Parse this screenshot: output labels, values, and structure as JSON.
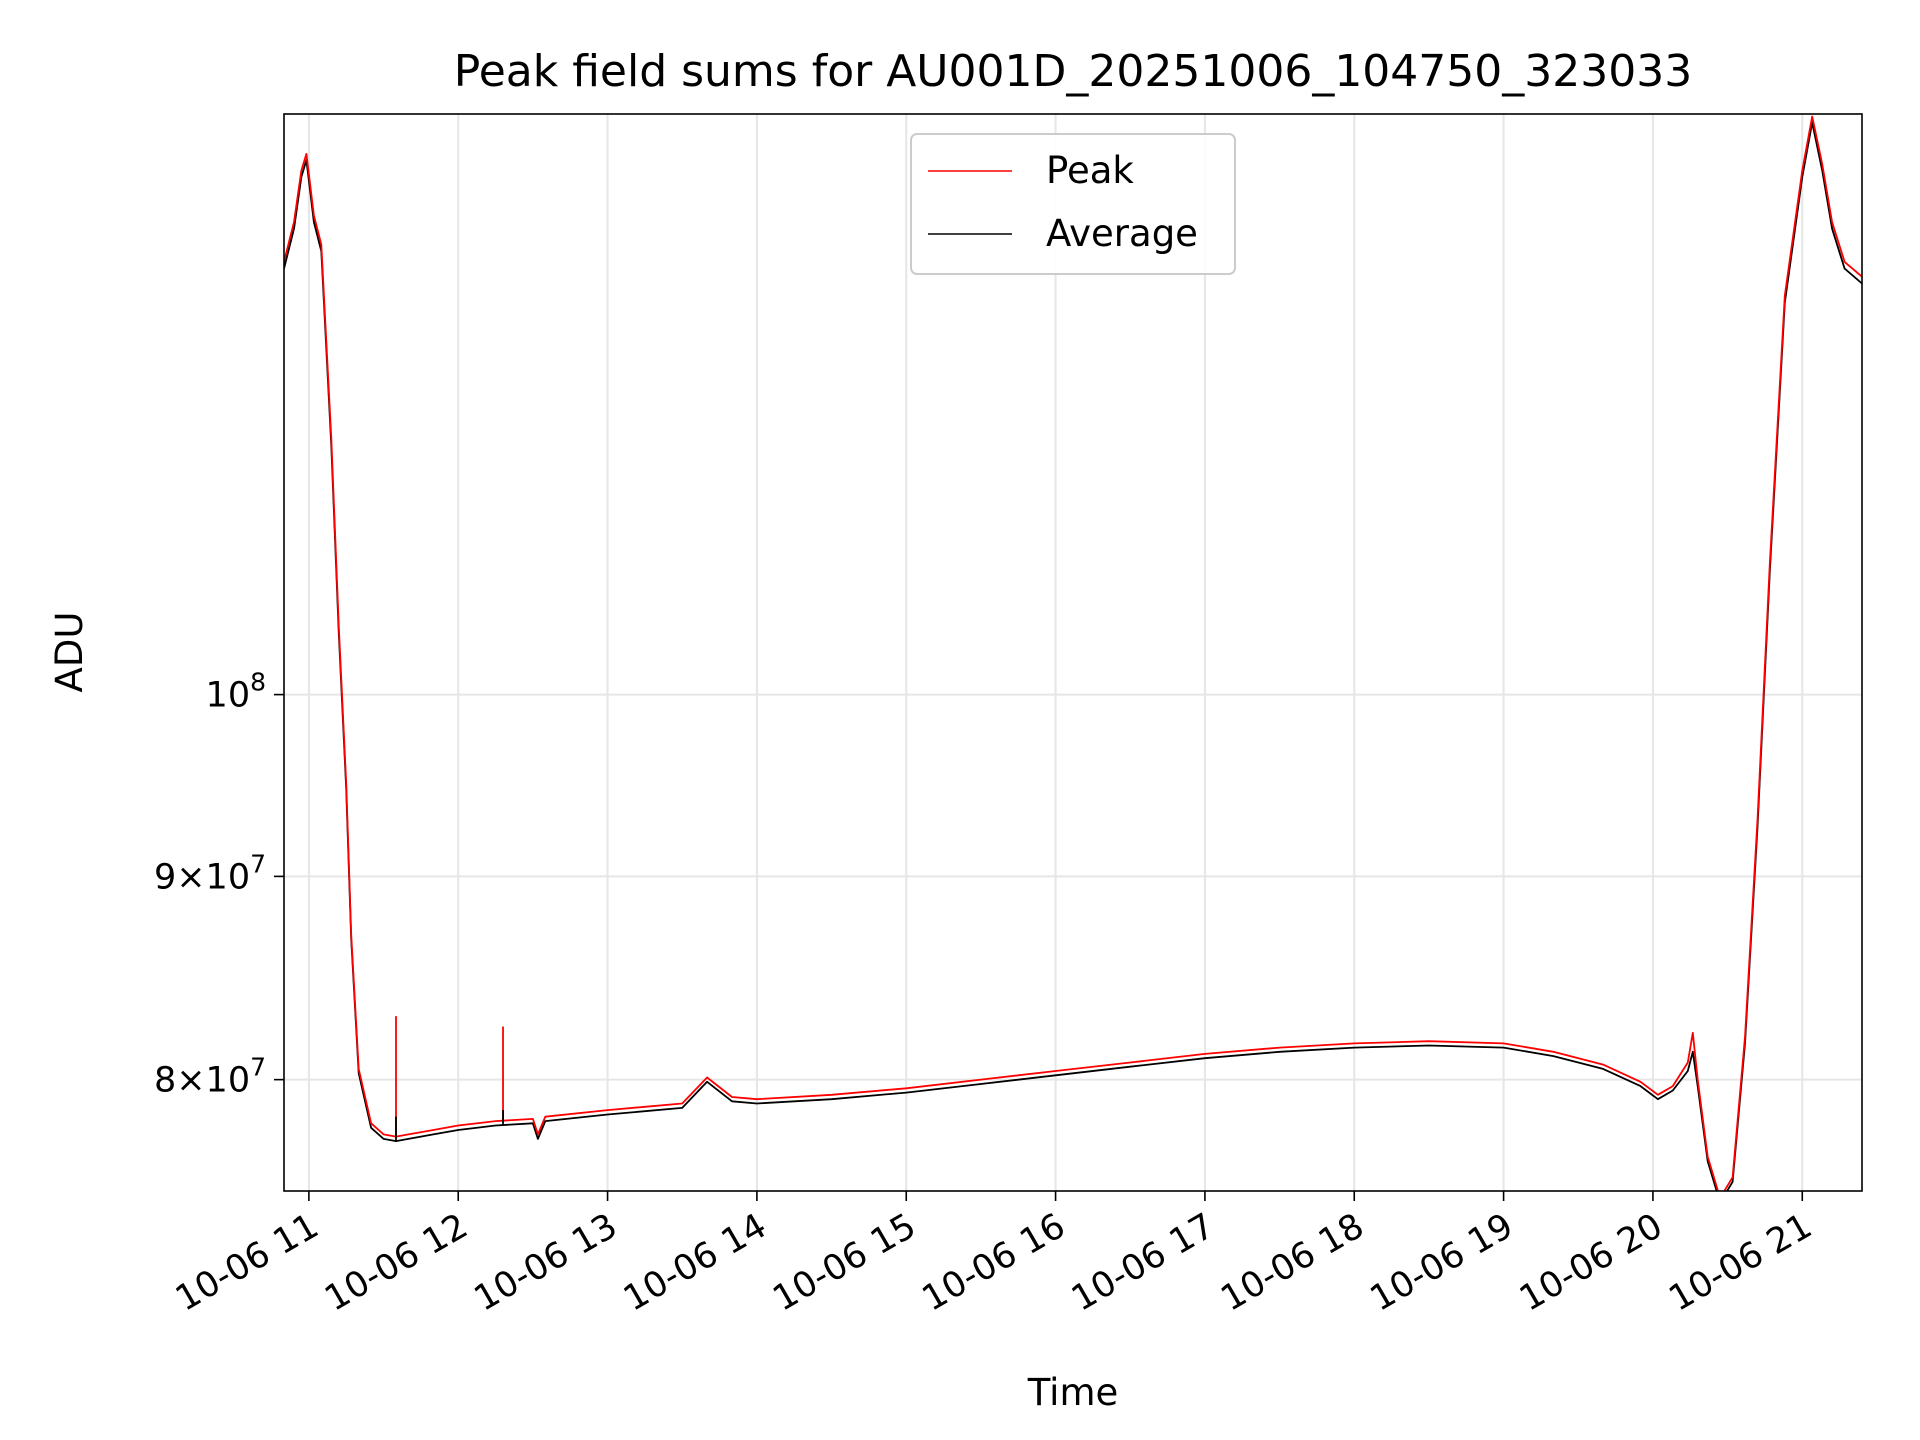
{
  "chart_data": {
    "type": "line",
    "title": "Peak field sums for AU001D_20251006_104750_323033",
    "xlabel": "Time",
    "ylabel": "ADU",
    "yscale": "log",
    "grid": true,
    "legend_placement": "top-center",
    "xlim": [
      "2025-10-06 10:50",
      "2025-10-06 21:24"
    ],
    "ylim": [
      75000000,
      140000000
    ],
    "x_ticks": [
      {
        "value": "2025-10-06 11:00",
        "label": "10-06 11"
      },
      {
        "value": "2025-10-06 12:00",
        "label": "10-06 12"
      },
      {
        "value": "2025-10-06 13:00",
        "label": "10-06 13"
      },
      {
        "value": "2025-10-06 14:00",
        "label": "10-06 14"
      },
      {
        "value": "2025-10-06 15:00",
        "label": "10-06 15"
      },
      {
        "value": "2025-10-06 16:00",
        "label": "10-06 16"
      },
      {
        "value": "2025-10-06 17:00",
        "label": "10-06 17"
      },
      {
        "value": "2025-10-06 18:00",
        "label": "10-06 18"
      },
      {
        "value": "2025-10-06 19:00",
        "label": "10-06 19"
      },
      {
        "value": "2025-10-06 20:00",
        "label": "10-06 20"
      },
      {
        "value": "2025-10-06 21:00",
        "label": "10-06 21"
      }
    ],
    "y_ticks": [
      {
        "value": 80000000,
        "mant": "8×10",
        "exp": "7"
      },
      {
        "value": 90000000,
        "mant": "9×10",
        "exp": "7"
      },
      {
        "value": 100000000,
        "mant": "10",
        "exp": "8"
      }
    ],
    "series": [
      {
        "name": "Peak",
        "color": "#ff0000",
        "points": [
          [
            "2025-10-06 10:50",
            128500000
          ],
          [
            "2025-10-06 10:54",
            131500000
          ],
          [
            "2025-10-06 10:57",
            135500000
          ],
          [
            "2025-10-06 10:59",
            136800000
          ],
          [
            "2025-10-06 11:02",
            132000000
          ],
          [
            "2025-10-06 11:05",
            129800000
          ],
          [
            "2025-10-06 11:09",
            116000000
          ],
          [
            "2025-10-06 11:12",
            104000000
          ],
          [
            "2025-10-06 11:15",
            95000000
          ],
          [
            "2025-10-06 11:17",
            87000000
          ],
          [
            "2025-10-06 11:20",
            80500000
          ],
          [
            "2025-10-06 11:25",
            78000000
          ],
          [
            "2025-10-06 11:30",
            77500000
          ],
          [
            "2025-10-06 11:35",
            77400000
          ],
          [
            "2025-10-06 11:40",
            77500000
          ],
          [
            "2025-10-06 11:50",
            77700000
          ],
          [
            "2025-10-06 12:00",
            77900000
          ],
          [
            "2025-10-06 12:15",
            78100000
          ],
          [
            "2025-10-06 12:30",
            78200000
          ],
          [
            "2025-10-06 12:32",
            77500000
          ],
          [
            "2025-10-06 12:35",
            78300000
          ],
          [
            "2025-10-06 13:00",
            78600000
          ],
          [
            "2025-10-06 13:30",
            78900000
          ],
          [
            "2025-10-06 13:40",
            80100000
          ],
          [
            "2025-10-06 13:50",
            79200000
          ],
          [
            "2025-10-06 14:00",
            79100000
          ],
          [
            "2025-10-06 14:30",
            79300000
          ],
          [
            "2025-10-06 15:00",
            79600000
          ],
          [
            "2025-10-06 15:30",
            80000000
          ],
          [
            "2025-10-06 16:00",
            80400000
          ],
          [
            "2025-10-06 16:30",
            80800000
          ],
          [
            "2025-10-06 17:00",
            81200000
          ],
          [
            "2025-10-06 17:30",
            81500000
          ],
          [
            "2025-10-06 18:00",
            81700000
          ],
          [
            "2025-10-06 18:30",
            81800000
          ],
          [
            "2025-10-06 19:00",
            81700000
          ],
          [
            "2025-10-06 19:20",
            81300000
          ],
          [
            "2025-10-06 19:40",
            80700000
          ],
          [
            "2025-10-06 19:55",
            79900000
          ],
          [
            "2025-10-06 20:02",
            79300000
          ],
          [
            "2025-10-06 20:08",
            79700000
          ],
          [
            "2025-10-06 20:14",
            80800000
          ],
          [
            "2025-10-06 20:16",
            82200000
          ],
          [
            "2025-10-06 20:18",
            80000000
          ],
          [
            "2025-10-06 20:22",
            76500000
          ],
          [
            "2025-10-06 20:27",
            74700000
          ],
          [
            "2025-10-06 20:32",
            75600000
          ],
          [
            "2025-10-06 20:37",
            82000000
          ],
          [
            "2025-10-06 20:42",
            93000000
          ],
          [
            "2025-10-06 20:47",
            108000000
          ],
          [
            "2025-10-06 20:53",
            126000000
          ],
          [
            "2025-10-06 21:00",
            135500000
          ],
          [
            "2025-10-06 21:04",
            139800000
          ],
          [
            "2025-10-06 21:08",
            136000000
          ],
          [
            "2025-10-06 21:12",
            131500000
          ],
          [
            "2025-10-06 21:17",
            128500000
          ],
          [
            "2025-10-06 21:24",
            127400000
          ]
        ]
      },
      {
        "name": "Average",
        "color": "#000000",
        "points": [
          [
            "2025-10-06 10:50",
            128000000
          ],
          [
            "2025-10-06 10:54",
            131000000
          ],
          [
            "2025-10-06 10:57",
            135000000
          ],
          [
            "2025-10-06 10:59",
            136300000
          ],
          [
            "2025-10-06 11:02",
            131500000
          ],
          [
            "2025-10-06 11:05",
            129300000
          ],
          [
            "2025-10-06 11:09",
            115500000
          ],
          [
            "2025-10-06 11:12",
            103600000
          ],
          [
            "2025-10-06 11:15",
            94700000
          ],
          [
            "2025-10-06 11:17",
            86800000
          ],
          [
            "2025-10-06 11:20",
            80300000
          ],
          [
            "2025-10-06 11:25",
            77800000
          ],
          [
            "2025-10-06 11:30",
            77300000
          ],
          [
            "2025-10-06 11:35",
            77200000
          ],
          [
            "2025-10-06 11:40",
            77300000
          ],
          [
            "2025-10-06 11:50",
            77500000
          ],
          [
            "2025-10-06 12:00",
            77700000
          ],
          [
            "2025-10-06 12:15",
            77900000
          ],
          [
            "2025-10-06 12:30",
            78000000
          ],
          [
            "2025-10-06 12:32",
            77300000
          ],
          [
            "2025-10-06 12:35",
            78100000
          ],
          [
            "2025-10-06 13:00",
            78400000
          ],
          [
            "2025-10-06 13:30",
            78700000
          ],
          [
            "2025-10-06 13:40",
            79900000
          ],
          [
            "2025-10-06 13:50",
            79000000
          ],
          [
            "2025-10-06 14:00",
            78900000
          ],
          [
            "2025-10-06 14:30",
            79100000
          ],
          [
            "2025-10-06 15:00",
            79400000
          ],
          [
            "2025-10-06 15:30",
            79800000
          ],
          [
            "2025-10-06 16:00",
            80200000
          ],
          [
            "2025-10-06 16:30",
            80600000
          ],
          [
            "2025-10-06 17:00",
            81000000
          ],
          [
            "2025-10-06 17:30",
            81300000
          ],
          [
            "2025-10-06 18:00",
            81500000
          ],
          [
            "2025-10-06 18:30",
            81600000
          ],
          [
            "2025-10-06 19:00",
            81500000
          ],
          [
            "2025-10-06 19:20",
            81100000
          ],
          [
            "2025-10-06 19:40",
            80500000
          ],
          [
            "2025-10-06 19:55",
            79700000
          ],
          [
            "2025-10-06 20:02",
            79100000
          ],
          [
            "2025-10-06 20:08",
            79500000
          ],
          [
            "2025-10-06 20:14",
            80400000
          ],
          [
            "2025-10-06 20:16",
            81300000
          ],
          [
            "2025-10-06 20:18",
            79700000
          ],
          [
            "2025-10-06 20:22",
            76300000
          ],
          [
            "2025-10-06 20:27",
            74500000
          ],
          [
            "2025-10-06 20:32",
            75400000
          ],
          [
            "2025-10-06 20:37",
            81700000
          ],
          [
            "2025-10-06 20:42",
            92600000
          ],
          [
            "2025-10-06 20:47",
            107500000
          ],
          [
            "2025-10-06 20:53",
            125500000
          ],
          [
            "2025-10-06 21:00",
            135000000
          ],
          [
            "2025-10-06 21:04",
            139300000
          ],
          [
            "2025-10-06 21:08",
            135500000
          ],
          [
            "2025-10-06 21:12",
            131000000
          ],
          [
            "2025-10-06 21:17",
            128000000
          ],
          [
            "2025-10-06 21:24",
            126900000
          ]
        ]
      }
    ],
    "spikes": [
      {
        "series": "Peak",
        "time": "2025-10-06 11:35",
        "value": 83000000
      },
      {
        "series": "Peak",
        "time": "2025-10-06 12:18",
        "value": 82500000
      },
      {
        "series": "Average",
        "time": "2025-10-06 11:35",
        "value": 78300000
      },
      {
        "series": "Average",
        "time": "2025-10-06 12:18",
        "value": 78600000
      }
    ]
  }
}
